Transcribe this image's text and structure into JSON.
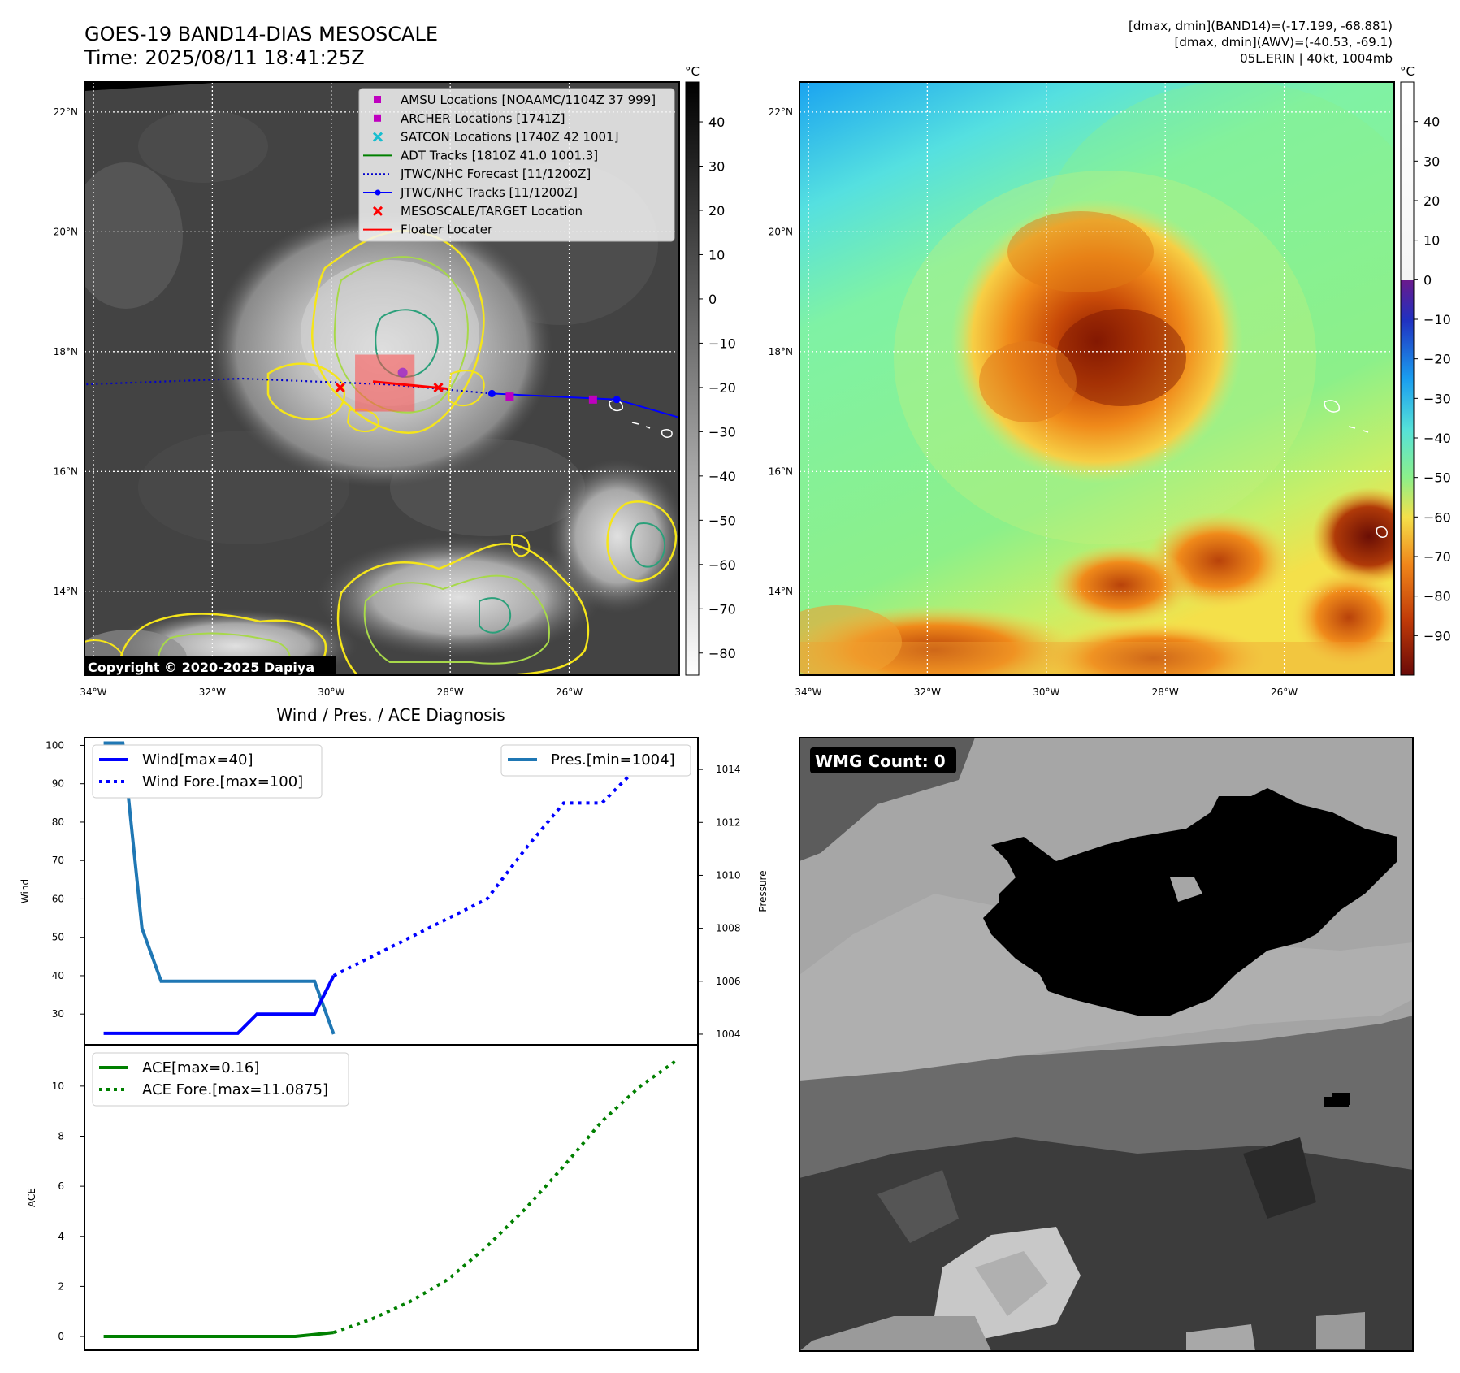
{
  "header": {
    "title": "GOES-19 BAND14-DIAS MESOSCALE",
    "time": "Time: 2025/08/11 18:41:25Z",
    "info_lines": [
      "[dmax, dmin](BAND14)=(-17.199, -68.881)",
      "[dmax, dmin](AWV)=(-40.53, -69.1)",
      "05L.ERIN | 40kt, 1004mb"
    ]
  },
  "map_axes": {
    "lon_labels": [
      "34°W",
      "32°W",
      "30°W",
      "28°W",
      "26°W"
    ],
    "lat_labels": [
      "22°N",
      "20°N",
      "18°N",
      "16°N",
      "14°N"
    ],
    "lon_values": [
      -34,
      -32,
      -30,
      -28,
      -26
    ],
    "lat_values": [
      22,
      20,
      18,
      16,
      14
    ],
    "lon_range": [
      -34.15,
      -24.15
    ],
    "lat_range": [
      12.6,
      22.5
    ]
  },
  "ir_panel": {
    "colorbar_unit": "°C",
    "colorbar_ticks": [
      "40",
      "30",
      "20",
      "10",
      "0",
      "−10",
      "−20",
      "−30",
      "−40",
      "−50",
      "−60",
      "−70",
      "−80"
    ],
    "colorbar_values": [
      40,
      30,
      20,
      10,
      0,
      -10,
      -20,
      -30,
      -40,
      -50,
      -60,
      -70,
      -80
    ],
    "colorbar_range": [
      -85,
      49
    ],
    "copyright": "Copyright © 2020-2025 Dapiya",
    "legend": [
      {
        "label": "AMSU Locations [NOAAMC/1104Z 37 999]",
        "color": "#bf00bf",
        "marker": "square"
      },
      {
        "label": "ARCHER Locations [1741Z]",
        "color": "#bf00bf",
        "marker": "square"
      },
      {
        "label": "SATCON Locations [1740Z 42 1001]",
        "color": "#17becf",
        "marker": "x"
      },
      {
        "label": "ADT Tracks [1810Z 41.0 1001.3]",
        "color": "#008000",
        "marker": "line"
      },
      {
        "label": "JTWC/NHC Forecast [11/1200Z]",
        "color": "#0000cc",
        "marker": "dotted"
      },
      {
        "label": "JTWC/NHC Tracks [11/1200Z]",
        "color": "#0000ff",
        "marker": "line-dot"
      },
      {
        "label": "MESOSCALE/TARGET Location",
        "color": "#ff0000",
        "marker": "x"
      },
      {
        "label": "Floater Locater",
        "color": "#ff0000",
        "marker": "line"
      }
    ],
    "track_points": [
      [
        -27.3,
        17.3
      ],
      [
        -25.2,
        17.2
      ]
    ],
    "forecast_points": [
      [
        -34.2,
        17.45
      ],
      [
        -31.5,
        17.55
      ],
      [
        -29.0,
        17.45
      ],
      [
        -27.3,
        17.3
      ]
    ],
    "amsu_points": [
      [
        -27.0,
        17.25
      ],
      [
        -25.6,
        17.2
      ]
    ],
    "target_points": [
      [
        -29.85,
        17.4
      ],
      [
        -28.2,
        17.4
      ]
    ],
    "archer_point": [
      -28.8,
      17.65
    ],
    "floater_box": [
      [
        -29.6,
        17.0
      ],
      [
        -28.6,
        17.95
      ]
    ]
  },
  "wv_panel": {
    "colorbar_unit": "°C",
    "colorbar_ticks": [
      "40",
      "30",
      "20",
      "10",
      "0",
      "−10",
      "−20",
      "−30",
      "−40",
      "−50",
      "−60",
      "−70",
      "−80",
      "−90"
    ],
    "colorbar_values": [
      40,
      30,
      20,
      10,
      0,
      -10,
      -20,
      -30,
      -40,
      -50,
      -60,
      -70,
      -80,
      -90
    ],
    "colorbar_range": [
      -100,
      50
    ]
  },
  "diagnosis": {
    "title": "Wind / Pres. / ACE Diagnosis",
    "wind_ylabel": "Wind",
    "pressure_ylabel": "Pressure",
    "ace_ylabel": "ACE",
    "legend_wind": "Wind[max=40]",
    "legend_wind_fore": "Wind Fore.[max=100]",
    "legend_pres": "Pres.[min=1004]",
    "legend_ace": "ACE[max=0.16]",
    "legend_ace_fore": "ACE Fore.[max=11.0875]",
    "wind_ticks": [
      "100",
      "90",
      "80",
      "70",
      "60",
      "50",
      "40",
      "30"
    ],
    "pres_ticks": [
      "1014",
      "1012",
      "1010",
      "1008",
      "1006",
      "1004"
    ],
    "ace_ticks": [
      "10",
      "8",
      "6",
      "4",
      "2",
      "0"
    ]
  },
  "wmg_panel": {
    "label": "WMG Count: 0"
  },
  "chart_data": [
    {
      "type": "line",
      "title": "Wind / Pres. / ACE Diagnosis",
      "xlabel": "",
      "ylabel": "Wind",
      "ylim": [
        22,
        102
      ],
      "xlim": [
        -1,
        31
      ],
      "series": [
        {
          "name": "Wind[max=40]",
          "color": "#0000ff",
          "style": "solid",
          "x": [
            0,
            1,
            2,
            3,
            4,
            5,
            6,
            7,
            8,
            9,
            10,
            11,
            12
          ],
          "y": [
            25,
            25,
            25,
            25,
            25,
            25,
            25,
            25,
            30,
            30,
            30,
            30,
            40
          ]
        },
        {
          "name": "Wind Fore.[max=100]",
          "color": "#0000ff",
          "style": "dotted",
          "x": [
            12,
            14,
            16,
            18,
            20,
            22,
            24,
            26,
            28,
            30
          ],
          "y": [
            40,
            45,
            50,
            55,
            60,
            73,
            85,
            85,
            95,
            100
          ]
        }
      ]
    },
    {
      "type": "line",
      "ylabel": "Pressure",
      "ylim": [
        1003.6,
        1015.2
      ],
      "series": [
        {
          "name": "Pres.[min=1004]",
          "color": "#1f77b4",
          "style": "solid",
          "x": [
            0,
            1,
            2,
            3,
            4,
            5,
            6,
            7,
            8,
            9,
            10,
            11,
            12
          ],
          "y": [
            1015,
            1015,
            1008,
            1006,
            1006,
            1006,
            1006,
            1006,
            1006,
            1006,
            1006,
            1006,
            1004
          ]
        }
      ]
    },
    {
      "type": "line",
      "ylabel": "ACE",
      "ylim": [
        -0.55,
        11.65
      ],
      "xlim": [
        -1,
        31
      ],
      "series": [
        {
          "name": "ACE[max=0.16]",
          "color": "#008000",
          "style": "solid",
          "x": [
            0,
            2,
            4,
            6,
            8,
            10,
            11,
            12
          ],
          "y": [
            0,
            0,
            0,
            0,
            0,
            0,
            0.08,
            0.16
          ]
        },
        {
          "name": "ACE Fore.[max=11.0875]",
          "color": "#008000",
          "style": "dotted",
          "x": [
            12,
            14,
            16,
            18,
            20,
            22,
            24,
            26,
            28,
            30
          ],
          "y": [
            0.16,
            0.7,
            1.4,
            2.3,
            3.6,
            5.1,
            6.8,
            8.6,
            10.0,
            11.0875
          ]
        }
      ]
    }
  ]
}
